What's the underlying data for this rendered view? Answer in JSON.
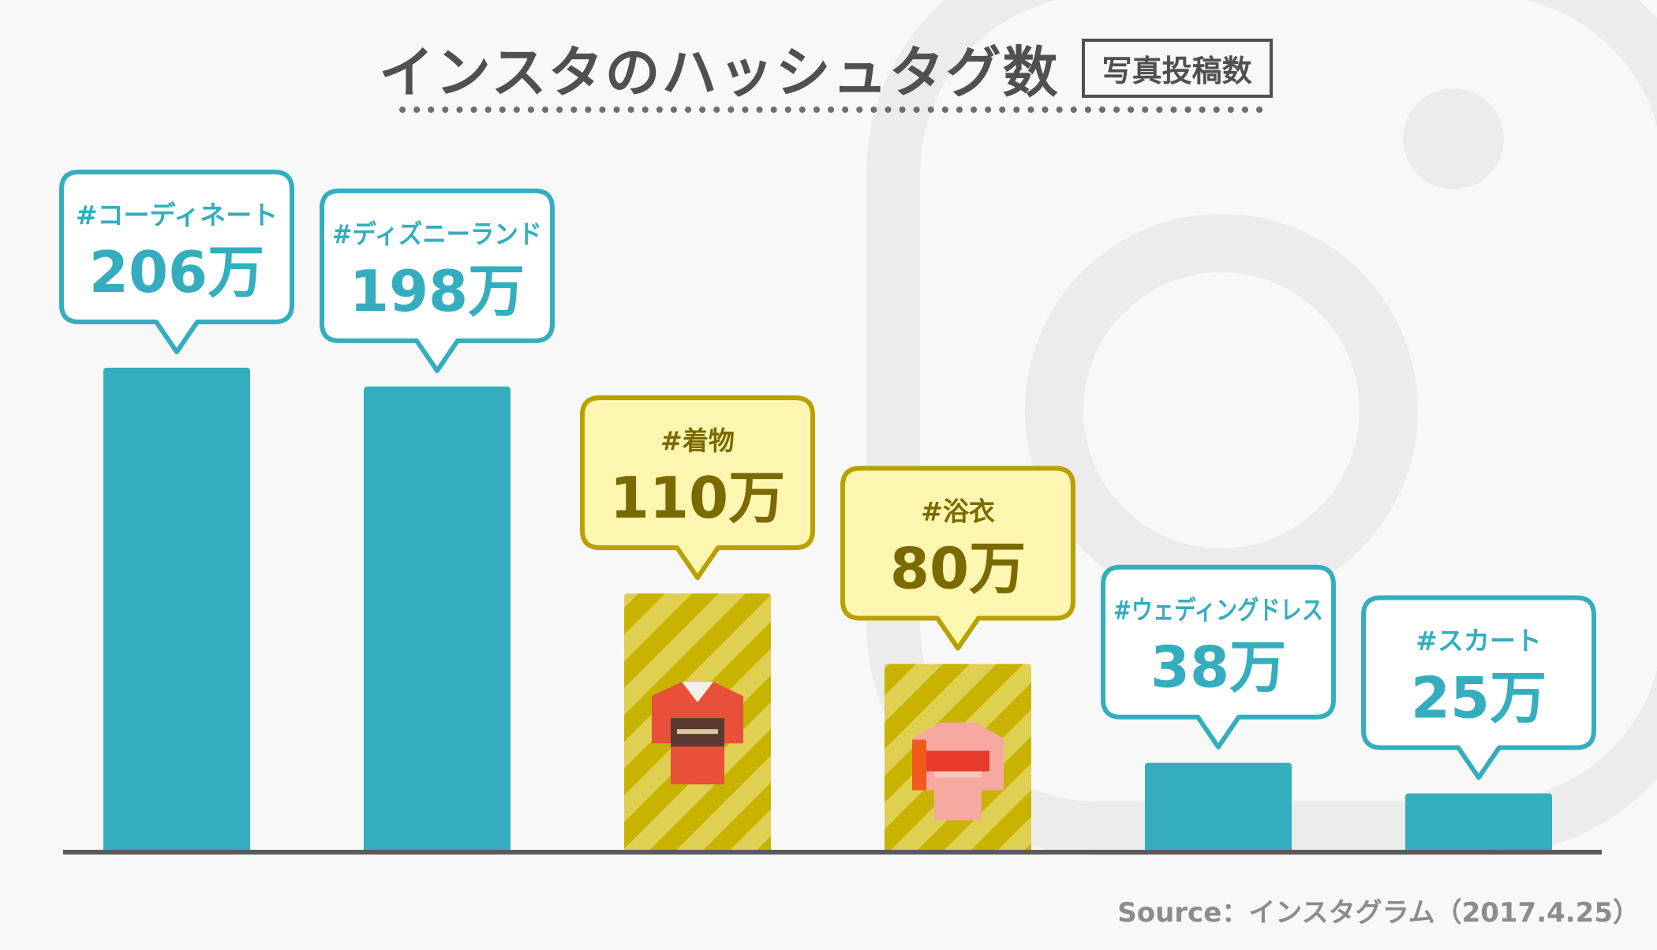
{
  "title": "インスタのハッシュタグ数",
  "badge": "写真投稿数",
  "source": "Source：インスタグラム（2017.4.25）",
  "colors": {
    "teal": "#34aebe",
    "yellow_fill": "#fcf6b0",
    "yellow_border": "#b8a100",
    "yellow_text": "#7a6a00",
    "stripe_a": "#c8b400",
    "stripe_b": "#e0d052",
    "axis": "#5a5a5a"
  },
  "chart_data": {
    "type": "bar",
    "title": "インスタのハッシュタグ数",
    "subtitle": "写真投稿数",
    "unit": "万",
    "ylim": [
      0,
      206
    ],
    "categories": [
      "#コーディネート",
      "#ディズニーランド",
      "#着物",
      "#浴衣",
      "#ウェディングドレス",
      "#スカート"
    ],
    "values": [
      206,
      198,
      110,
      80,
      38,
      25
    ],
    "value_labels": [
      "206万",
      "198万",
      "110万",
      "80万",
      "38万",
      "25万"
    ],
    "styles": [
      "teal",
      "teal",
      "yellow",
      "yellow",
      "teal",
      "teal"
    ],
    "icons": [
      "",
      "",
      "kimono-icon",
      "yukata-icon",
      "",
      ""
    ]
  }
}
